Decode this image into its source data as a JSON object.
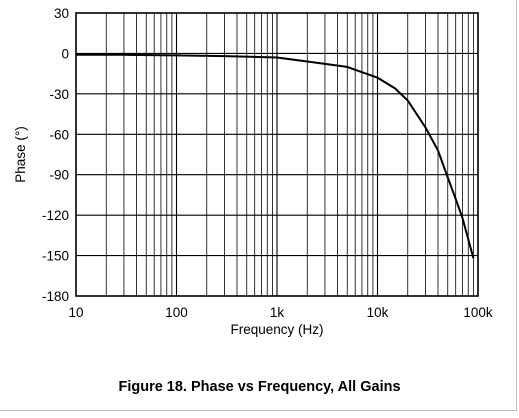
{
  "caption": "Figure 18. Phase vs Frequency, All Gains",
  "chart_data": {
    "type": "line",
    "title": "",
    "xlabel": "Frequency (Hz)",
    "ylabel": "Phase (°)",
    "xscale": "log",
    "xlim": [
      10,
      100000
    ],
    "ylim": [
      -180,
      30
    ],
    "xticks": [
      10,
      100,
      1000,
      10000,
      100000
    ],
    "xtick_labels": [
      "10",
      "100",
      "1k",
      "10k",
      "100k"
    ],
    "yticks": [
      30,
      0,
      -30,
      -60,
      -90,
      -120,
      -150,
      -180
    ],
    "ytick_labels": [
      "30",
      "0",
      "-30",
      "-60",
      "-90",
      "-120",
      "-150",
      "-180"
    ],
    "grid": true,
    "line_color": "#000000",
    "series": [
      {
        "x": [
          10,
          30,
          100,
          300,
          1000,
          2000,
          5000,
          10000,
          15000,
          20000,
          30000,
          40000,
          50000,
          60000,
          70000,
          80000,
          90000
        ],
        "y": [
          -1,
          -1,
          -1.5,
          -2,
          -3,
          -6,
          -10,
          -18,
          -26,
          -35,
          -55,
          -72,
          -92,
          -108,
          -122,
          -138,
          -152
        ]
      }
    ]
  }
}
